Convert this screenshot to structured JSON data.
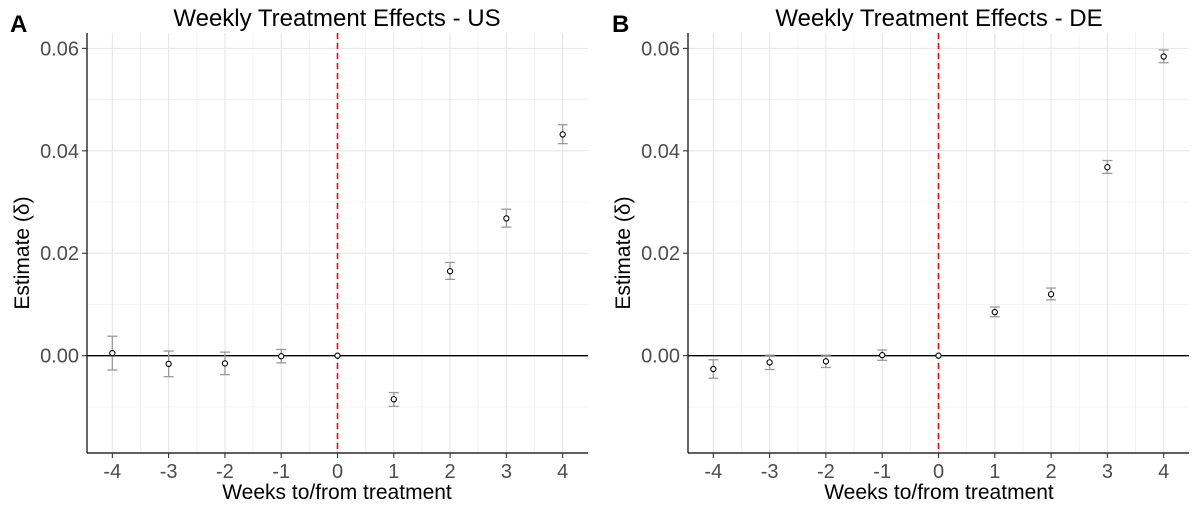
{
  "panels": [
    {
      "letter": "A"
    },
    {
      "letter": "B"
    }
  ],
  "chart_data": [
    {
      "type": "scatter",
      "title": "Weekly Treatment Effects - US",
      "xlabel": "Weeks to/from treatment",
      "ylabel": "Estimate (δ)",
      "x_ticks": [
        "-4",
        "-3",
        "-2",
        "-1",
        "0",
        "1",
        "2",
        "3",
        "4"
      ],
      "y_ticks": [
        "0.00",
        "0.02",
        "0.04",
        "0.06"
      ],
      "ylim": [
        -0.019,
        0.063
      ],
      "xlim": [
        -4.45,
        4.45
      ],
      "grid": true,
      "reference_hline": 0,
      "reference_vline": 0,
      "colors": {
        "points": "#000000",
        "errorbars": "#999999",
        "vline": "#ff0000"
      },
      "points": [
        {
          "x": -4,
          "y": 0.0005,
          "lo": -0.0028,
          "hi": 0.0038
        },
        {
          "x": -3,
          "y": -0.0016,
          "lo": -0.0041,
          "hi": 0.0009
        },
        {
          "x": -2,
          "y": -0.0015,
          "lo": -0.0037,
          "hi": 0.0007
        },
        {
          "x": -1,
          "y": -0.0001,
          "lo": -0.0014,
          "hi": 0.0012
        },
        {
          "x": 0,
          "y": 0.0,
          "lo": 0.0,
          "hi": 0.0
        },
        {
          "x": 1,
          "y": -0.0085,
          "lo": -0.0099,
          "hi": -0.0072
        },
        {
          "x": 2,
          "y": 0.0165,
          "lo": 0.0149,
          "hi": 0.0182
        },
        {
          "x": 3,
          "y": 0.0268,
          "lo": 0.0251,
          "hi": 0.0286
        },
        {
          "x": 4,
          "y": 0.0432,
          "lo": 0.0414,
          "hi": 0.0451
        }
      ]
    },
    {
      "type": "scatter",
      "title": "Weekly Treatment Effects - DE",
      "xlabel": "Weeks to/from treatment",
      "ylabel": "Estimate (δ)",
      "x_ticks": [
        "-4",
        "-3",
        "-2",
        "-1",
        "0",
        "1",
        "2",
        "3",
        "4"
      ],
      "y_ticks": [
        "0.00",
        "0.02",
        "0.04",
        "0.06"
      ],
      "ylim": [
        -0.019,
        0.063
      ],
      "xlim": [
        -4.45,
        4.45
      ],
      "grid": true,
      "reference_hline": 0,
      "reference_vline": 0,
      "colors": {
        "points": "#000000",
        "errorbars": "#999999",
        "vline": "#ff0000"
      },
      "points": [
        {
          "x": -4,
          "y": -0.0026,
          "lo": -0.0044,
          "hi": -0.0008
        },
        {
          "x": -3,
          "y": -0.0013,
          "lo": -0.0027,
          "hi": 0.0001
        },
        {
          "x": -2,
          "y": -0.0011,
          "lo": -0.0023,
          "hi": 0.0001
        },
        {
          "x": -1,
          "y": 0.0001,
          "lo": -0.0009,
          "hi": 0.0011
        },
        {
          "x": 0,
          "y": 0.0,
          "lo": 0.0,
          "hi": 0.0
        },
        {
          "x": 1,
          "y": 0.0085,
          "lo": 0.0076,
          "hi": 0.0095
        },
        {
          "x": 2,
          "y": 0.012,
          "lo": 0.0109,
          "hi": 0.0132
        },
        {
          "x": 3,
          "y": 0.0368,
          "lo": 0.0356,
          "hi": 0.0381
        },
        {
          "x": 4,
          "y": 0.0584,
          "lo": 0.0572,
          "hi": 0.0597
        }
      ]
    }
  ]
}
